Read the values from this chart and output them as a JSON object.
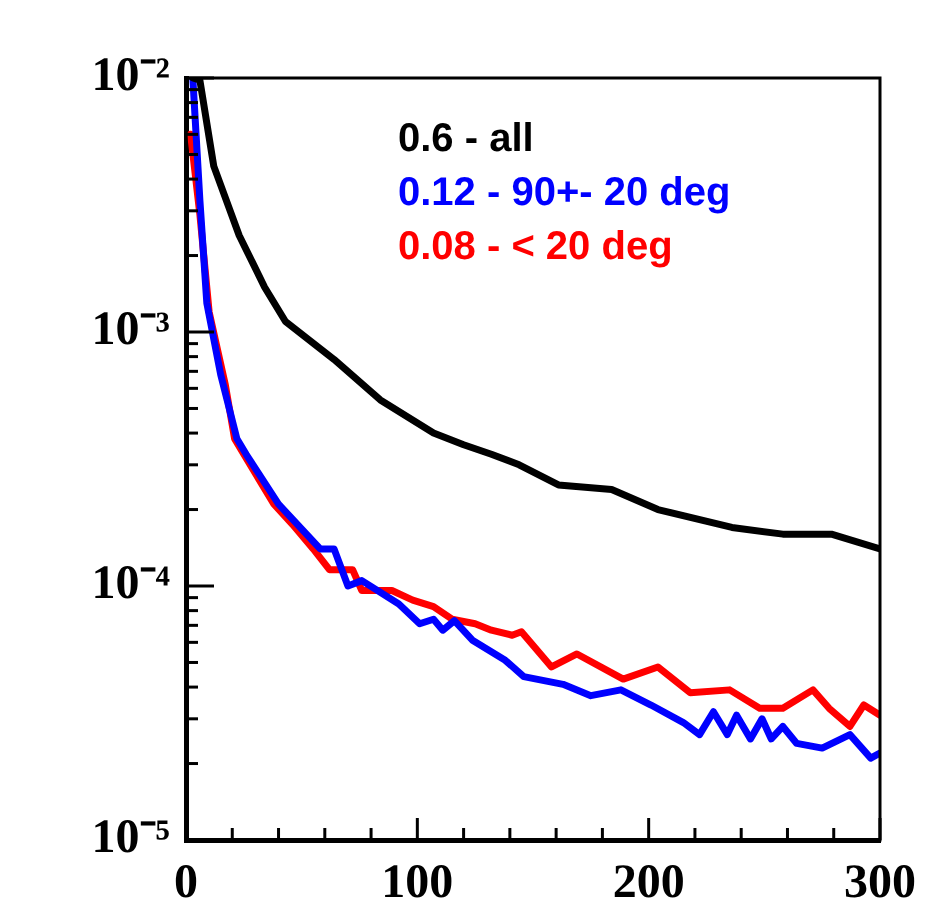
{
  "chart_data": {
    "type": "line",
    "log": "y",
    "legend": "top right",
    "grid": false,
    "marker": "none",
    "line_style": "solid",
    "xlim": [
      0,
      300
    ],
    "xticks": [
      0,
      {
        "value": 20,
        "label": null
      },
      {
        "value": 40,
        "label": null
      },
      {
        "value": 60,
        "label": null
      },
      {
        "value": 80,
        "label": null
      },
      100,
      {
        "value": 120,
        "label": null
      },
      {
        "value": 140,
        "label": null
      },
      {
        "value": 160,
        "label": null
      },
      {
        "value": 180,
        "label": null
      },
      200,
      {
        "value": 220,
        "label": null
      },
      {
        "value": 240,
        "label": null
      },
      {
        "value": 260,
        "label": null
      },
      {
        "value": 280,
        "label": null
      },
      300
    ],
    "ylim": [
      1e-05,
      0.01
    ],
    "yticks": [
      {
        "value": 1e-05,
        "label": "10⁻⁵"
      },
      {
        "value": 2e-05,
        "label": null
      },
      {
        "value": 3e-05,
        "label": null
      },
      {
        "value": 4e-05,
        "label": null
      },
      {
        "value": 5e-05,
        "label": null
      },
      {
        "value": 6e-05,
        "label": null
      },
      {
        "value": 7e-05,
        "label": null
      },
      {
        "value": 8e-05,
        "label": null
      },
      {
        "value": 9e-05,
        "label": null
      },
      {
        "value": 0.0001,
        "label": "10⁻⁴"
      },
      {
        "value": 0.0002,
        "label": null
      },
      {
        "value": 0.0003,
        "label": null
      },
      {
        "value": 0.0004,
        "label": null
      },
      {
        "value": 0.0005,
        "label": null
      },
      {
        "value": 0.0006,
        "label": null
      },
      {
        "value": 0.0007,
        "label": null
      },
      {
        "value": 0.0008,
        "label": null
      },
      {
        "value": 0.0009,
        "label": null
      },
      {
        "value": 0.001,
        "label": "10⁻³"
      },
      {
        "value": 0.002,
        "label": null
      },
      {
        "value": 0.003,
        "label": null
      },
      {
        "value": 0.004,
        "label": null
      },
      {
        "value": 0.005,
        "label": null
      },
      {
        "value": 0.006,
        "label": null
      },
      {
        "value": 0.007,
        "label": null
      },
      {
        "value": 0.008,
        "label": null
      },
      {
        "value": 0.009,
        "label": null
      },
      {
        "value": 0.01,
        "label": "10⁻²"
      }
    ],
    "series": [
      {
        "name": "0.6 - all",
        "color": "#000000",
        "x": [
          3,
          6,
          12,
          23,
          34,
          43,
          64,
          84,
          107,
          120,
          132,
          144,
          161,
          184,
          204,
          236,
          258,
          279,
          300
        ],
        "values": [
          0.01,
          0.0098,
          0.0045,
          0.0024,
          0.0015,
          0.0011,
          0.00078,
          0.00054,
          0.0004,
          0.00036,
          0.00033,
          0.0003,
          0.00025,
          0.00024,
          0.0002,
          0.00017,
          0.00016,
          0.00016,
          0.00014
        ]
      },
      {
        "name": "0.12 - 90+- 20 deg",
        "color": "#0000ff",
        "x": [
          3,
          6,
          9,
          15,
          22,
          26,
          40,
          58,
          64,
          70,
          76,
          92,
          101,
          107,
          111,
          116,
          124,
          138,
          146,
          163,
          175,
          188,
          201,
          215,
          222,
          228,
          234,
          238,
          244,
          249,
          253,
          258,
          264,
          275,
          287,
          296,
          300
        ],
        "values": [
          0.0098,
          0.0033,
          0.0013,
          0.00068,
          0.00038,
          0.00033,
          0.00021,
          0.00014,
          0.00014,
          0.0001,
          0.000105,
          8.5e-05,
          7.1e-05,
          7.4e-05,
          6.7e-05,
          7.3e-05,
          6.1e-05,
          5.1e-05,
          4.4e-05,
          4.1e-05,
          3.7e-05,
          3.9e-05,
          3.4e-05,
          2.9e-05,
          2.6e-05,
          3.2e-05,
          2.6e-05,
          3.1e-05,
          2.5e-05,
          3e-05,
          2.5e-05,
          2.8e-05,
          2.4e-05,
          2.3e-05,
          2.6e-05,
          2.1e-05,
          2.2e-05
        ]
      },
      {
        "name": "0.08 - < 20 deg",
        "color": "#ff0000",
        "x": [
          2,
          6,
          10,
          17,
          21,
          25,
          38,
          46,
          55,
          62,
          72,
          76,
          89,
          98,
          107,
          115,
          125,
          132,
          141,
          145,
          158,
          169,
          189,
          204,
          218,
          235,
          248,
          258,
          271,
          278,
          287,
          293,
          300
        ],
        "values": [
          0.006,
          0.0029,
          0.0012,
          0.00062,
          0.00038,
          0.00033,
          0.00021,
          0.000175,
          0.00014,
          0.000116,
          0.000116,
          9.6e-05,
          9.6e-05,
          8.8e-05,
          8.3e-05,
          7.4e-05,
          7.1e-05,
          6.7e-05,
          6.4e-05,
          6.6e-05,
          4.8e-05,
          5.4e-05,
          4.3e-05,
          4.8e-05,
          3.8e-05,
          3.9e-05,
          3.3e-05,
          3.3e-05,
          3.9e-05,
          3.3e-05,
          2.8e-05,
          3.4e-05,
          3.1e-05
        ]
      }
    ]
  }
}
